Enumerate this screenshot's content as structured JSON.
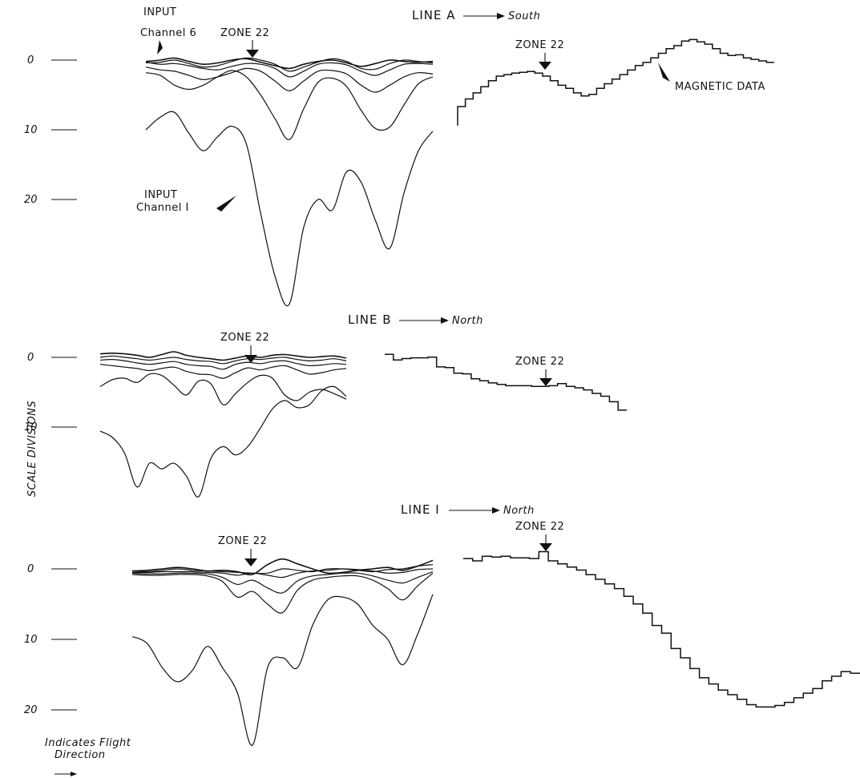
{
  "chart_data": [
    {
      "type": "line",
      "title_prefix": "LINE A",
      "direction": "South",
      "ylabel_ticks": [
        "0",
        "10",
        "20"
      ],
      "zone_label": "ZONE 22",
      "zone_label_magnetic": "ZONE 22",
      "annotations": {
        "input_ch6_line1": "INPUT",
        "input_ch6_line2": "Channel 6",
        "input_ch1_line1": "INPUT",
        "input_ch1_line2": "Channel I",
        "magnetic": "MAGNETIC DATA"
      },
      "em_series": [
        {
          "x": [
            0,
            10,
            20,
            30,
            40,
            50,
            60,
            70,
            80,
            90,
            100,
            110,
            120,
            130,
            140,
            150,
            160,
            170,
            180,
            190,
            200
          ],
          "y": [
            0.2,
            0.0,
            -0.3,
            0.2,
            0.6,
            0.4,
            0.0,
            -0.2,
            0.3,
            0.8,
            1.2,
            0.6,
            0.2,
            0.0,
            0.4,
            0.9,
            0.5,
            0.0,
            0.2,
            0.3,
            0.2
          ]
        },
        {
          "x": [
            0,
            10,
            20,
            30,
            40,
            50,
            60,
            70,
            80,
            90,
            100,
            110,
            120,
            130,
            140,
            150,
            160,
            170,
            180,
            190,
            200
          ],
          "y": [
            0.4,
            0.3,
            0.0,
            0.5,
            1.0,
            0.8,
            0.2,
            -0.3,
            0.0,
            0.6,
            1.6,
            1.0,
            0.3,
            -0.2,
            0.2,
            1.2,
            1.3,
            0.5,
            0.0,
            0.2,
            0.4
          ]
        },
        {
          "x": [
            0,
            10,
            20,
            30,
            40,
            50,
            60,
            70,
            80,
            90,
            100,
            110,
            120,
            130,
            140,
            150,
            160,
            170,
            180,
            190,
            200
          ],
          "y": [
            0.3,
            0.6,
            0.5,
            0.8,
            1.2,
            1.4,
            0.9,
            0.5,
            0.6,
            1.2,
            2.4,
            1.6,
            0.6,
            0.4,
            0.7,
            1.6,
            2.2,
            1.4,
            0.6,
            0.5,
            0.6
          ]
        },
        {
          "x": [
            0,
            10,
            20,
            30,
            40,
            50,
            60,
            70,
            80,
            90,
            100,
            110,
            120,
            130,
            140,
            150,
            160,
            170,
            180,
            190,
            200
          ],
          "y": [
            1.0,
            1.4,
            1.6,
            2.2,
            2.8,
            2.4,
            1.8,
            1.2,
            1.6,
            3.0,
            4.4,
            3.0,
            1.6,
            1.5,
            2.0,
            3.6,
            4.6,
            3.6,
            2.4,
            1.8,
            2.0
          ]
        },
        {
          "x": [
            0,
            10,
            20,
            30,
            40,
            50,
            60,
            70,
            80,
            90,
            100,
            110,
            120,
            130,
            140,
            150,
            160,
            170,
            180,
            190,
            200
          ],
          "y": [
            1.8,
            2.2,
            3.6,
            4.2,
            3.6,
            2.4,
            1.5,
            2.4,
            5.0,
            8.4,
            11.4,
            7.0,
            3.2,
            2.6,
            3.8,
            7.2,
            9.8,
            9.6,
            6.4,
            3.4,
            2.4
          ]
        },
        {
          "x": [
            0,
            10,
            20,
            30,
            40,
            50,
            60,
            70,
            80,
            90,
            100,
            110,
            120,
            130,
            140,
            150,
            160,
            170,
            180,
            190,
            200
          ],
          "y": [
            10.0,
            8.2,
            7.5,
            10.5,
            13.0,
            11.0,
            9.5,
            12.0,
            22.0,
            31.0,
            35.0,
            24.0,
            20.0,
            21.5,
            16.0,
            17.5,
            23.0,
            27.0,
            19.0,
            13.0,
            10.2
          ]
        }
      ],
      "magnetic_steps": [
        6.0,
        5.0,
        4.2,
        3.4,
        2.6,
        2.0,
        1.8,
        1.6,
        1.5,
        1.4,
        1.6,
        2.0,
        2.6,
        3.2,
        3.6,
        4.2,
        4.6,
        4.4,
        3.6,
        3.0,
        2.4,
        1.8,
        1.2,
        0.6,
        0.2,
        -0.4,
        -1.0,
        -1.6,
        -2.0,
        -2.6,
        -2.8,
        -2.5,
        -2.2,
        -1.6,
        -1.0,
        -0.7,
        -0.8,
        -0.4,
        -0.2,
        0.0,
        0.2
      ]
    },
    {
      "type": "line",
      "title_prefix": "LINE B",
      "direction": "North",
      "ylabel_ticks": [
        "0",
        "10"
      ],
      "zone_label": "ZONE 22",
      "zone_label_magnetic": "ZONE 22",
      "em_series": [
        {
          "x": [
            0,
            10,
            20,
            30,
            40,
            50,
            60,
            70,
            80,
            90,
            100,
            110,
            120,
            130,
            140,
            150,
            160,
            170,
            180,
            190,
            200
          ],
          "y": [
            -0.5,
            -0.6,
            -0.5,
            -0.3,
            0.0,
            -0.4,
            -0.8,
            -0.3,
            0.0,
            0.2,
            0.4,
            0.1,
            -0.2,
            0.0,
            -0.3,
            -0.4,
            -0.2,
            0.0,
            -0.1,
            -0.2,
            0.1
          ]
        },
        {
          "x": [
            0,
            10,
            20,
            30,
            40,
            50,
            60,
            70,
            80,
            90,
            100,
            110,
            120,
            130,
            140,
            150,
            160,
            170,
            180,
            190,
            200
          ],
          "y": [
            0.0,
            -0.2,
            0.0,
            0.2,
            0.4,
            0.2,
            0.0,
            0.3,
            0.5,
            0.6,
            0.9,
            0.5,
            0.2,
            0.3,
            0.1,
            0.0,
            0.3,
            0.5,
            0.4,
            0.2,
            0.5
          ]
        },
        {
          "x": [
            0,
            10,
            20,
            30,
            40,
            50,
            60,
            70,
            80,
            90,
            100,
            110,
            120,
            130,
            140,
            150,
            160,
            170,
            180,
            190,
            200
          ],
          "y": [
            0.4,
            0.3,
            0.5,
            0.8,
            1.0,
            0.8,
            0.6,
            1.0,
            1.2,
            1.3,
            1.7,
            1.0,
            0.7,
            0.9,
            0.6,
            0.5,
            0.9,
            1.2,
            1.1,
            0.9,
            1.0
          ]
        },
        {
          "x": [
            0,
            10,
            20,
            30,
            40,
            50,
            60,
            70,
            80,
            90,
            100,
            110,
            120,
            130,
            140,
            150,
            160,
            170,
            180,
            190,
            200
          ],
          "y": [
            1.0,
            1.2,
            1.4,
            1.6,
            1.9,
            1.6,
            1.4,
            2.0,
            2.4,
            2.5,
            3.0,
            2.2,
            1.5,
            1.8,
            1.4,
            1.2,
            1.8,
            2.4,
            2.2,
            1.8,
            1.6
          ]
        },
        {
          "x": [
            0,
            10,
            20,
            30,
            40,
            50,
            60,
            70,
            80,
            90,
            100,
            110,
            120,
            130,
            140,
            150,
            160,
            170,
            180,
            190,
            200
          ],
          "y": [
            4.2,
            3.2,
            3.0,
            3.6,
            2.4,
            2.6,
            4.0,
            5.4,
            3.4,
            3.8,
            6.8,
            5.2,
            3.6,
            2.6,
            3.0,
            5.4,
            6.2,
            5.0,
            4.6,
            5.2,
            6.0
          ]
        },
        {
          "x": [
            0,
            10,
            20,
            30,
            40,
            50,
            60,
            70,
            80,
            90,
            100,
            110,
            120,
            130,
            140,
            150,
            160,
            170,
            180,
            190,
            200
          ],
          "y": [
            10.6,
            11.5,
            13.8,
            18.6,
            15.2,
            16.0,
            15.2,
            17.0,
            20.0,
            14.5,
            12.8,
            14.0,
            12.8,
            10.2,
            7.4,
            6.2,
            7.2,
            6.8,
            4.8,
            4.2,
            5.6
          ]
        }
      ],
      "magnetic_steps": [
        -0.2,
        0.6,
        0.4,
        0.3,
        0.3,
        0.2,
        1.6,
        1.7,
        2.5,
        2.6,
        3.3,
        3.6,
        3.9,
        4.1,
        4.3,
        4.3,
        4.3,
        4.4,
        4.4,
        4.3,
        4.0,
        4.4,
        4.6,
        4.9,
        5.4,
        5.8,
        6.6,
        7.8
      ]
    },
    {
      "type": "line",
      "title_prefix": "LINE I",
      "direction": "North",
      "ylabel_ticks": [
        "0",
        "10",
        "20"
      ],
      "zone_label": "ZONE 22",
      "zone_label_magnetic": "ZONE 22",
      "em_series": [
        {
          "x": [
            0,
            10,
            20,
            30,
            40,
            50,
            60,
            70,
            80,
            90,
            100,
            110,
            120,
            130,
            140,
            150,
            160,
            170,
            180,
            190,
            200
          ],
          "y": [
            0.3,
            0.2,
            0.0,
            -0.2,
            0.0,
            0.3,
            0.2,
            0.4,
            0.8,
            -0.6,
            -1.4,
            -0.7,
            0.0,
            0.6,
            0.5,
            0.2,
            0.0,
            -0.2,
            0.2,
            -0.4,
            -1.2
          ]
        },
        {
          "x": [
            0,
            10,
            20,
            30,
            40,
            50,
            60,
            70,
            80,
            90,
            100,
            110,
            120,
            130,
            140,
            150,
            160,
            170,
            180,
            190,
            200
          ],
          "y": [
            0.3,
            0.4,
            0.2,
            0.0,
            0.2,
            0.3,
            0.4,
            0.5,
            0.6,
            0.6,
            0.0,
            0.2,
            0.4,
            0.0,
            0.0,
            0.2,
            0.4,
            0.1,
            0.0,
            -0.4,
            -0.6
          ]
        },
        {
          "x": [
            0,
            10,
            20,
            30,
            40,
            50,
            60,
            70,
            80,
            90,
            100,
            110,
            120,
            130,
            140,
            150,
            160,
            170,
            180,
            190,
            200
          ],
          "y": [
            0.5,
            0.5,
            0.4,
            0.4,
            0.4,
            0.5,
            0.6,
            0.9,
            0.6,
            0.9,
            1.2,
            0.6,
            0.3,
            0.2,
            0.0,
            0.1,
            0.3,
            0.6,
            0.5,
            0.1,
            0.0
          ]
        },
        {
          "x": [
            0,
            10,
            20,
            30,
            40,
            50,
            60,
            70,
            80,
            90,
            100,
            110,
            120,
            130,
            140,
            150,
            160,
            170,
            180,
            190,
            200
          ],
          "y": [
            0.6,
            0.7,
            0.7,
            0.6,
            0.6,
            0.7,
            1.2,
            2.2,
            1.6,
            2.7,
            3.4,
            1.7,
            1.0,
            0.8,
            0.6,
            0.6,
            1.0,
            1.6,
            2.0,
            1.2,
            0.4
          ]
        },
        {
          "x": [
            0,
            10,
            20,
            30,
            40,
            50,
            60,
            70,
            80,
            90,
            100,
            110,
            120,
            130,
            140,
            150,
            160,
            170,
            180,
            190,
            200
          ],
          "y": [
            0.8,
            0.9,
            0.9,
            0.8,
            0.8,
            1.0,
            1.8,
            4.0,
            3.2,
            5.0,
            6.2,
            3.0,
            1.6,
            1.2,
            1.0,
            1.0,
            1.6,
            2.8,
            4.4,
            2.4,
            0.6
          ]
        },
        {
          "x": [
            0,
            10,
            20,
            30,
            40,
            50,
            60,
            70,
            80,
            90,
            100,
            110,
            120,
            130,
            140,
            150,
            160,
            170,
            180,
            190,
            200
          ],
          "y": [
            9.6,
            10.6,
            14.0,
            16.0,
            14.4,
            11.0,
            14.0,
            17.6,
            25.0,
            14.0,
            12.6,
            14.0,
            8.0,
            4.4,
            4.0,
            5.0,
            8.0,
            10.0,
            13.6,
            9.2,
            3.6
          ]
        }
      ],
      "magnetic_steps": [
        -0.3,
        0.0,
        -0.6,
        -0.5,
        -0.6,
        -0.4,
        -0.4,
        -0.3,
        -1.2,
        0.0,
        0.4,
        0.8,
        1.2,
        1.8,
        2.4,
        3.0,
        3.6,
        4.6,
        5.6,
        6.8,
        8.4,
        9.4,
        11.4,
        12.6,
        14.0,
        15.2,
        16.0,
        16.8,
        17.4,
        18.0,
        18.7,
        19.0,
        19.0,
        18.8,
        18.4,
        17.8,
        17.2,
        16.6,
        15.6,
        15.0,
        14.4,
        14.6
      ]
    }
  ],
  "scale_label": "SCALE DIVISIONS",
  "legend": {
    "line1": "Indicates Flight",
    "line2": "Direction"
  }
}
